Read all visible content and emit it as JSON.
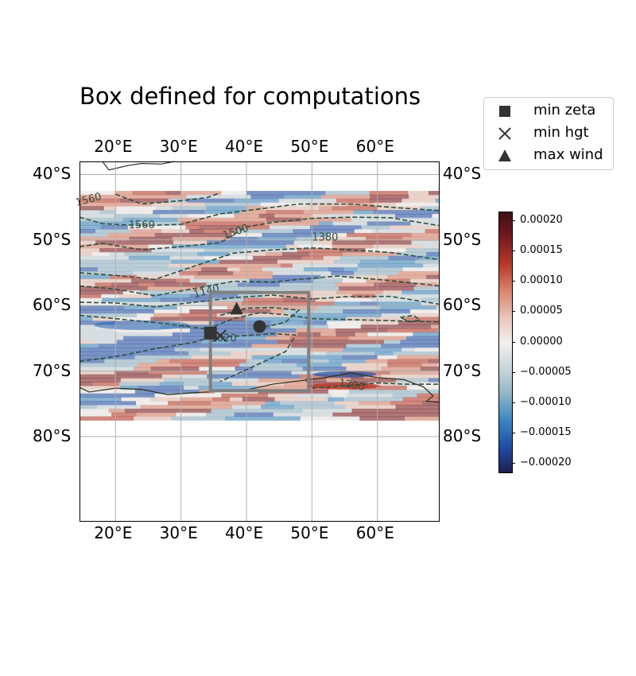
{
  "title": "Box defined for computations",
  "map": {
    "lon_labels": [
      "20°E",
      "30°E",
      "40°E",
      "50°E",
      "60°E"
    ],
    "lon_values": [
      20,
      30,
      40,
      50,
      60
    ],
    "lat_labels": [
      "40°S",
      "50°S",
      "60°S",
      "70°S",
      "80°S"
    ],
    "lat_values": [
      -40,
      -50,
      -60,
      -70,
      -80
    ],
    "extent": {
      "lon": [
        14.5,
        69.5
      ],
      "lat": [
        -38,
        -93
      ]
    },
    "data_extent": {
      "lon": [
        14.5,
        69.5
      ],
      "lat": [
        -42.5,
        -77.5
      ]
    },
    "computation_box": {
      "lon": [
        34.5,
        49.5
      ],
      "lat": [
        -58,
        -73
      ]
    },
    "contour_labels": [
      "1560",
      "1560",
      "1500",
      "1380",
      "1140",
      "1020",
      "1200"
    ],
    "contour_levels": [
      1020,
      1140,
      1200,
      1380,
      1500,
      1560
    ],
    "contour_color": "#2f4f3f",
    "points": [
      {
        "name": "min zeta",
        "marker": "square",
        "lon": 34.5,
        "lat": -64.2
      },
      {
        "name": "min hgt",
        "marker": "x",
        "lon": 36,
        "lat": -64.6
      },
      {
        "name": "max wind",
        "marker": "triangle",
        "lon": 38.5,
        "lat": -60.5
      },
      {
        "name": "",
        "marker": "circle",
        "lon": 42,
        "lat": -63.2
      }
    ],
    "marker_color": "#333333",
    "box_color": "#808080"
  },
  "legend": {
    "entries": [
      {
        "label": "min zeta",
        "marker": "square"
      },
      {
        "label": "min hgt",
        "marker": "x"
      },
      {
        "label": "max wind",
        "marker": "triangle"
      }
    ]
  },
  "colorbar": {
    "ticks": [
      "0.00020",
      "0.00015",
      "0.00010",
      "0.00005",
      "0.00000",
      "−0.00005",
      "−0.00010",
      "−0.00015",
      "−0.00020"
    ],
    "tick_values": [
      0.0002,
      0.00015,
      0.0001,
      5e-05,
      0,
      -5e-05,
      -0.0001,
      -0.00015,
      -0.0002
    ],
    "range": [
      -0.000215,
      0.000215
    ],
    "colormap": [
      "#1f1f4f",
      "#1f4fa8",
      "#3a86c0",
      "#8fb5c8",
      "#c9d6dc",
      "#f2efee",
      "#e8c3b6",
      "#d9826a",
      "#b83a2a",
      "#7a1a1f",
      "#3d0f14"
    ]
  }
}
